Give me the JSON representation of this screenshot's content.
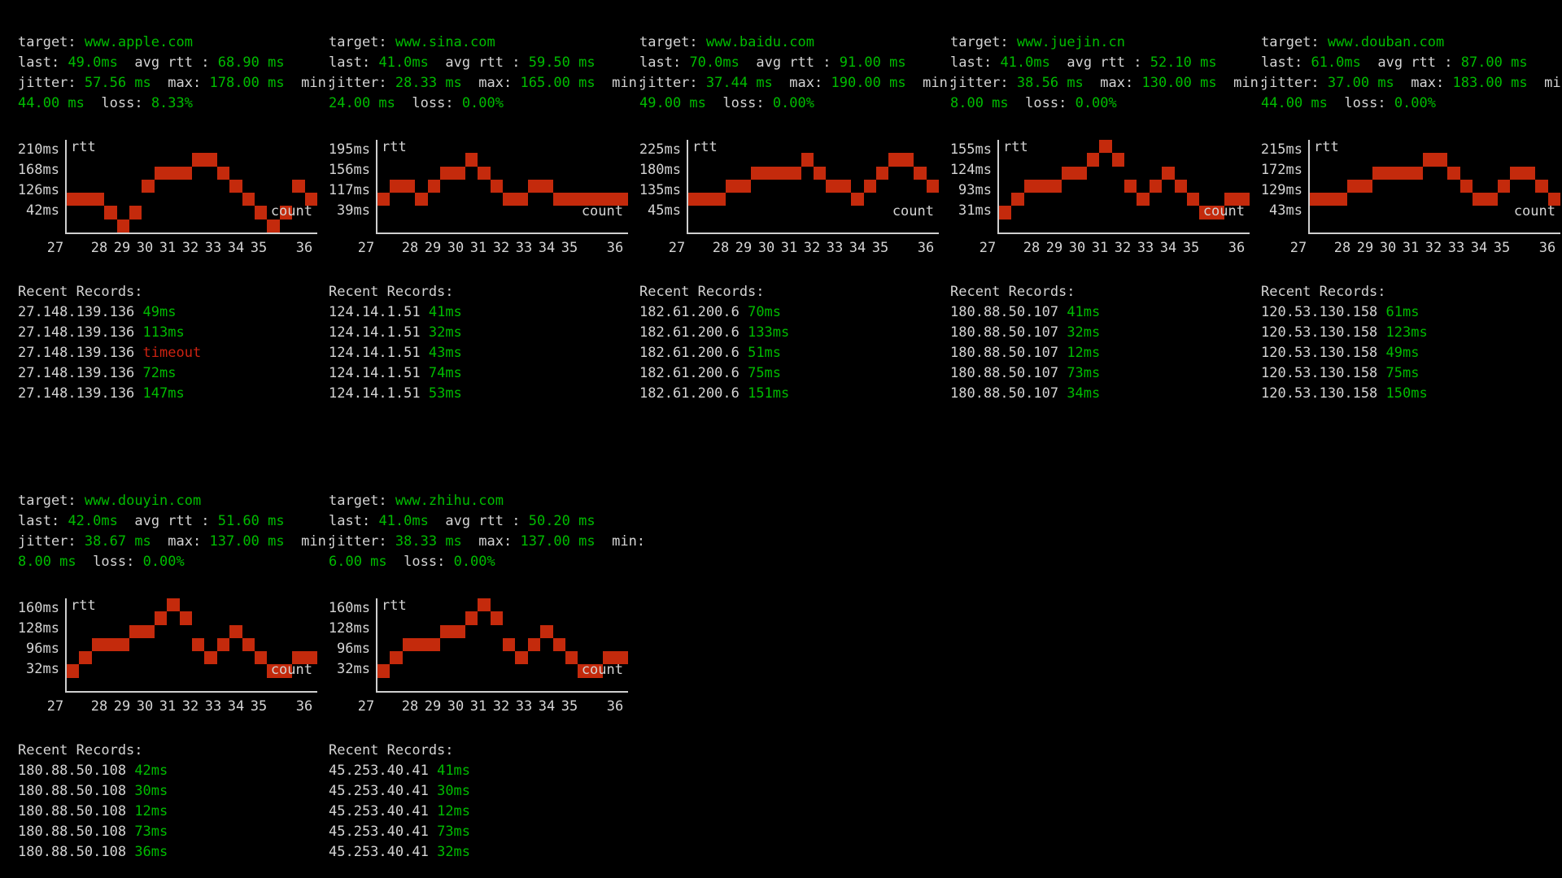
{
  "labels": {
    "target": "target:",
    "last": "last:",
    "avg_rtt": "avg rtt :",
    "jitter": "jitter:",
    "max": "max:",
    "min": "min:",
    "loss": "loss:",
    "rtt": "rtt",
    "count": "count",
    "recent": "Recent Records:"
  },
  "colors": {
    "background": "#000000",
    "foreground": "#d4d4d4",
    "value_green": "#00bb00",
    "bar_red": "#c42a0c",
    "timeout_red": "#cc2211",
    "axis_grey": "#cfcfcf"
  },
  "xticks": [
    "27",
    "28",
    "29",
    "30",
    "31",
    "32",
    "33",
    "34",
    "35",
    "36"
  ],
  "panels": [
    {
      "target": "www.apple.com",
      "last": "49.0ms",
      "avg": "68.90 ms",
      "jitter": "57.56 ms",
      "max": "178.00 ms",
      "min": "44.00 ms",
      "loss": "8.33%",
      "chart": {
        "type": "bar-step",
        "unit": "ms",
        "yticks": [
          "210ms",
          "168ms",
          "126ms",
          "42ms"
        ],
        "levels": [
          3,
          3,
          3,
          2,
          1,
          2,
          4,
          5,
          5,
          5,
          6,
          6,
          5,
          4,
          3,
          2,
          1,
          2,
          4,
          3
        ]
      },
      "records": [
        {
          "ip": "27.148.139.136",
          "value": "49ms",
          "status": "ok"
        },
        {
          "ip": "27.148.139.136",
          "value": "113ms",
          "status": "ok"
        },
        {
          "ip": "27.148.139.136",
          "value": "timeout",
          "status": "timeout"
        },
        {
          "ip": "27.148.139.136",
          "value": "72ms",
          "status": "ok"
        },
        {
          "ip": "27.148.139.136",
          "value": "147ms",
          "status": "ok"
        }
      ]
    },
    {
      "target": "www.sina.com",
      "last": "41.0ms",
      "avg": "59.50 ms",
      "jitter": "28.33 ms",
      "max": "165.00 ms",
      "min": "24.00 ms",
      "loss": "0.00%",
      "chart": {
        "type": "bar-step",
        "unit": "ms",
        "yticks": [
          "195ms",
          "156ms",
          "117ms",
          "39ms"
        ],
        "levels": [
          3,
          4,
          4,
          3,
          4,
          5,
          5,
          6,
          5,
          4,
          3,
          3,
          4,
          4,
          3,
          3,
          3,
          3,
          3,
          3
        ]
      },
      "records": [
        {
          "ip": "124.14.1.51",
          "value": "41ms",
          "status": "ok"
        },
        {
          "ip": "124.14.1.51",
          "value": "32ms",
          "status": "ok"
        },
        {
          "ip": "124.14.1.51",
          "value": "43ms",
          "status": "ok"
        },
        {
          "ip": "124.14.1.51",
          "value": "74ms",
          "status": "ok"
        },
        {
          "ip": "124.14.1.51",
          "value": "53ms",
          "status": "ok"
        }
      ]
    },
    {
      "target": "www.baidu.com",
      "last": "70.0ms",
      "avg": "91.00 ms",
      "jitter": "37.44 ms",
      "max": "190.00 ms",
      "min": "49.00 ms",
      "loss": "0.00%",
      "chart": {
        "type": "bar-step",
        "unit": "ms",
        "yticks": [
          "225ms",
          "180ms",
          "135ms",
          "45ms"
        ],
        "levels": [
          3,
          3,
          3,
          4,
          4,
          5,
          5,
          5,
          5,
          6,
          5,
          4,
          4,
          3,
          4,
          5,
          6,
          6,
          5,
          4
        ]
      },
      "records": [
        {
          "ip": "182.61.200.6",
          "value": "70ms",
          "status": "ok"
        },
        {
          "ip": "182.61.200.6",
          "value": "133ms",
          "status": "ok"
        },
        {
          "ip": "182.61.200.6",
          "value": "51ms",
          "status": "ok"
        },
        {
          "ip": "182.61.200.6",
          "value": "75ms",
          "status": "ok"
        },
        {
          "ip": "182.61.200.6",
          "value": "151ms",
          "status": "ok"
        }
      ]
    },
    {
      "target": "www.juejin.cn",
      "last": "41.0ms",
      "avg": "52.10 ms",
      "jitter": "38.56 ms",
      "max": "130.00 ms",
      "min": "8.00 ms",
      "loss": "0.00%",
      "chart": {
        "type": "bar-step",
        "unit": "ms",
        "yticks": [
          "155ms",
          "124ms",
          "93ms",
          "31ms"
        ],
        "levels": [
          2,
          3,
          4,
          4,
          4,
          5,
          5,
          6,
          7,
          6,
          4,
          3,
          4,
          5,
          4,
          3,
          2,
          2,
          3,
          3
        ]
      },
      "records": [
        {
          "ip": "180.88.50.107",
          "value": "41ms",
          "status": "ok"
        },
        {
          "ip": "180.88.50.107",
          "value": "32ms",
          "status": "ok"
        },
        {
          "ip": "180.88.50.107",
          "value": "12ms",
          "status": "ok"
        },
        {
          "ip": "180.88.50.107",
          "value": "73ms",
          "status": "ok"
        },
        {
          "ip": "180.88.50.107",
          "value": "34ms",
          "status": "ok"
        }
      ]
    },
    {
      "target": "www.douban.com",
      "last": "61.0ms",
      "avg": "87.00 ms",
      "jitter": "37.00 ms",
      "max": "183.00 ms",
      "min": "44.00 ms",
      "loss": "0.00%",
      "chart": {
        "type": "bar-step",
        "unit": "ms",
        "yticks": [
          "215ms",
          "172ms",
          "129ms",
          "43ms"
        ],
        "levels": [
          3,
          3,
          3,
          4,
          4,
          5,
          5,
          5,
          5,
          6,
          6,
          5,
          4,
          3,
          3,
          4,
          5,
          5,
          4,
          3
        ]
      },
      "records": [
        {
          "ip": "120.53.130.158",
          "value": "61ms",
          "status": "ok"
        },
        {
          "ip": "120.53.130.158",
          "value": "123ms",
          "status": "ok"
        },
        {
          "ip": "120.53.130.158",
          "value": "49ms",
          "status": "ok"
        },
        {
          "ip": "120.53.130.158",
          "value": "75ms",
          "status": "ok"
        },
        {
          "ip": "120.53.130.158",
          "value": "150ms",
          "status": "ok"
        }
      ]
    },
    {
      "target": "www.douyin.com",
      "last": "42.0ms",
      "avg": "51.60 ms",
      "jitter": "38.67 ms",
      "max": "137.00 ms",
      "min": "8.00 ms",
      "loss": "0.00%",
      "chart": {
        "type": "bar-step",
        "unit": "ms",
        "yticks": [
          "160ms",
          "128ms",
          "96ms",
          "32ms"
        ],
        "levels": [
          2,
          3,
          4,
          4,
          4,
          5,
          5,
          6,
          7,
          6,
          4,
          3,
          4,
          5,
          4,
          3,
          2,
          2,
          3,
          3
        ]
      },
      "records": [
        {
          "ip": "180.88.50.108",
          "value": "42ms",
          "status": "ok"
        },
        {
          "ip": "180.88.50.108",
          "value": "30ms",
          "status": "ok"
        },
        {
          "ip": "180.88.50.108",
          "value": "12ms",
          "status": "ok"
        },
        {
          "ip": "180.88.50.108",
          "value": "73ms",
          "status": "ok"
        },
        {
          "ip": "180.88.50.108",
          "value": "36ms",
          "status": "ok"
        }
      ]
    },
    {
      "target": "www.zhihu.com",
      "last": "41.0ms",
      "avg": "50.20 ms",
      "jitter": "38.33 ms",
      "max": "137.00 ms",
      "min": "6.00 ms",
      "loss": "0.00%",
      "chart": {
        "type": "bar-step",
        "unit": "ms",
        "yticks": [
          "160ms",
          "128ms",
          "96ms",
          "32ms"
        ],
        "levels": [
          2,
          3,
          4,
          4,
          4,
          5,
          5,
          6,
          7,
          6,
          4,
          3,
          4,
          5,
          4,
          3,
          2,
          2,
          3,
          3
        ]
      },
      "records": [
        {
          "ip": "45.253.40.41",
          "value": "41ms",
          "status": "ok"
        },
        {
          "ip": "45.253.40.41",
          "value": "30ms",
          "status": "ok"
        },
        {
          "ip": "45.253.40.41",
          "value": "12ms",
          "status": "ok"
        },
        {
          "ip": "45.253.40.41",
          "value": "73ms",
          "status": "ok"
        },
        {
          "ip": "45.253.40.41",
          "value": "32ms",
          "status": "ok"
        }
      ]
    }
  ]
}
